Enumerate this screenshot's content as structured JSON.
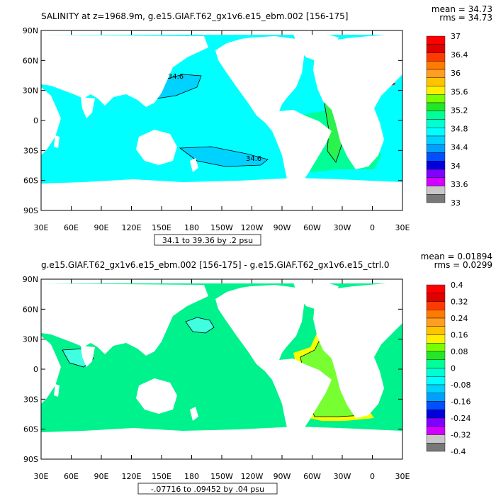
{
  "chart_data": [
    {
      "type": "heatmap",
      "title": "SALINITY at z=1968.9m, g.e15.GIAF.T62_gx1v6.e15_ebm.002 [156-175]",
      "stats": {
        "mean": "mean = 34.73",
        "rms": "rms = 34.73"
      },
      "x_ticks": [
        "30E",
        "60E",
        "90E",
        "120E",
        "150E",
        "180",
        "150W",
        "120W",
        "90W",
        "60W",
        "30W",
        "0",
        "30E"
      ],
      "y_ticks": [
        "90N",
        "60N",
        "30N",
        "0",
        "30S",
        "60S",
        "90S"
      ],
      "colorbar_labels": [
        "37",
        "36.4",
        "36",
        "35.6",
        "35.2",
        "34.8",
        "34.4",
        "34",
        "33.6",
        "33"
      ],
      "contour_labels": [
        "34.6",
        "34.6"
      ],
      "range_note": "34.1 to 39.36 by .2 psu"
    },
    {
      "type": "heatmap",
      "title": "g.e15.GIAF.T62_gx1v6.e15_ebm.002 [156-175] - g.e15.GIAF.T62_gx1v6.e15_ctrl.0",
      "stats": {
        "mean": "mean = 0.01894",
        "rms": "rms = 0.0299"
      },
      "x_ticks": [
        "30E",
        "60E",
        "90E",
        "120E",
        "150E",
        "180",
        "150W",
        "120W",
        "90W",
        "60W",
        "30W",
        "0",
        "30E"
      ],
      "y_ticks": [
        "90N",
        "60N",
        "30N",
        "0",
        "30S",
        "60S",
        "90S"
      ],
      "colorbar_labels": [
        "0.4",
        "0.32",
        "0.24",
        "0.16",
        "0.08",
        "0",
        "-0.08",
        "-0.16",
        "-0.24",
        "-0.32",
        "-0.4"
      ],
      "contour_labels": [],
      "range_note": "-.07716 to .09452 by .04 psu"
    }
  ],
  "colors": {
    "land": "#ffffff",
    "panel1_ocean": "#00ffff",
    "panel1_pacific_core": "#00d2ff",
    "panel1_atlantic": "#00ff96",
    "panel1_atlantic_core": "#2bf24c",
    "panel1_med": "#b40000",
    "panel2_ocean": "#00f28c",
    "panel2_atlantic": "#78ff32",
    "panel2_rim": "#f5ff00",
    "panel2_cyan": "#40ffe0",
    "cb1": [
      "#ff0000",
      "#e00000",
      "#ff3a00",
      "#ff7a00",
      "#ff9e20",
      "#ffc400",
      "#ffee00",
      "#78ff00",
      "#22e628",
      "#00ff96",
      "#00ffd2",
      "#00ffff",
      "#00d2ff",
      "#00a0ff",
      "#0050ff",
      "#0000dc",
      "#8000ff",
      "#d200ff",
      "#c8c8c8",
      "#787878"
    ],
    "cb2": [
      "#ff0000",
      "#e00000",
      "#ff3a00",
      "#ff7a00",
      "#ff9e20",
      "#ffc400",
      "#ffee00",
      "#78ff00",
      "#22e628",
      "#00ff96",
      "#00ffd2",
      "#00ffff",
      "#00d2ff",
      "#00a0ff",
      "#0050ff",
      "#0000dc",
      "#8000ff",
      "#d200ff",
      "#c8c8c8",
      "#787878"
    ]
  }
}
